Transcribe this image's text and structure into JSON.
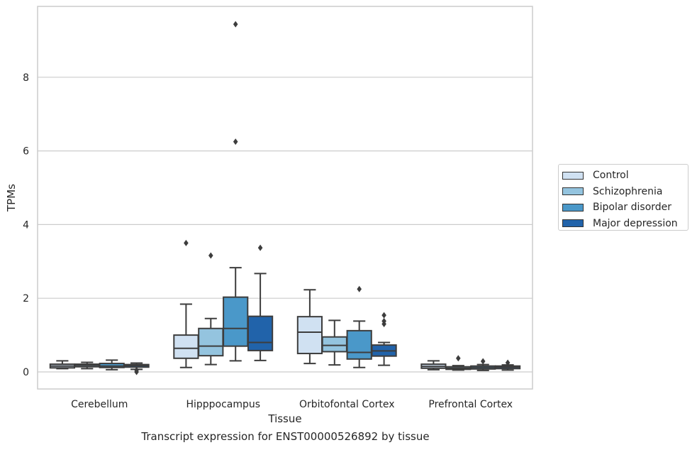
{
  "chart_data": {
    "type": "box",
    "caption": "Transcript expression for ENST00000526892 by tissue",
    "xlabel": "Tissue",
    "ylabel": "TPMs",
    "ylim": [
      -0.45,
      9.95
    ],
    "yticks": [
      0,
      2,
      4,
      6,
      8
    ],
    "grid": true,
    "legend_position": "right",
    "categories": [
      "Cerebellum",
      "Hipppocampus",
      "Orbitofontal Cortex",
      "Prefrontal Cortex"
    ],
    "series": [
      {
        "name": "Control",
        "color": "#d0e1f2",
        "boxes": [
          {
            "min": 0.09,
            "q1": 0.11,
            "median": 0.16,
            "q3": 0.21,
            "max": 0.3,
            "outliers": []
          },
          {
            "min": 0.12,
            "q1": 0.37,
            "median": 0.64,
            "q3": 1.0,
            "max": 1.84,
            "outliers": [
              3.5
            ]
          },
          {
            "min": 0.23,
            "q1": 0.5,
            "median": 1.08,
            "q3": 1.5,
            "max": 2.23,
            "outliers": []
          },
          {
            "min": 0.06,
            "q1": 0.1,
            "median": 0.15,
            "q3": 0.21,
            "max": 0.3,
            "outliers": []
          }
        ]
      },
      {
        "name": "Schizophrenia",
        "color": "#94c4df",
        "boxes": [
          {
            "min": 0.09,
            "q1": 0.14,
            "median": 0.18,
            "q3": 0.21,
            "max": 0.26,
            "outliers": []
          },
          {
            "min": 0.2,
            "q1": 0.44,
            "median": 0.7,
            "q3": 1.18,
            "max": 1.45,
            "outliers": [
              3.16
            ]
          },
          {
            "min": 0.19,
            "q1": 0.55,
            "median": 0.72,
            "q3": 0.95,
            "max": 1.4,
            "outliers": []
          },
          {
            "min": 0.05,
            "q1": 0.07,
            "median": 0.1,
            "q3": 0.14,
            "max": 0.17,
            "outliers": [
              0.37
            ]
          }
        ]
      },
      {
        "name": "Bipolar disorder",
        "color": "#4a98c9",
        "boxes": [
          {
            "min": 0.06,
            "q1": 0.12,
            "median": 0.16,
            "q3": 0.23,
            "max": 0.32,
            "outliers": []
          },
          {
            "min": 0.3,
            "q1": 0.7,
            "median": 1.18,
            "q3": 2.03,
            "max": 2.83,
            "outliers": [
              6.25,
              9.44
            ]
          },
          {
            "min": 0.12,
            "q1": 0.35,
            "median": 0.53,
            "q3": 1.12,
            "max": 1.38,
            "outliers": [
              2.25
            ]
          },
          {
            "min": 0.04,
            "q1": 0.08,
            "median": 0.12,
            "q3": 0.16,
            "max": 0.2,
            "outliers": [
              0.29
            ]
          }
        ]
      },
      {
        "name": "Major depression",
        "color": "#2163aa",
        "boxes": [
          {
            "min": 0.07,
            "q1": 0.13,
            "median": 0.17,
            "q3": 0.2,
            "max": 0.24,
            "outliers": [
              0.0,
              0.05
            ]
          },
          {
            "min": 0.31,
            "q1": 0.58,
            "median": 0.8,
            "q3": 1.51,
            "max": 2.67,
            "outliers": [
              3.37
            ]
          },
          {
            "min": 0.18,
            "q1": 0.43,
            "median": 0.57,
            "q3": 0.73,
            "max": 0.8,
            "outliers": [
              1.3,
              1.38,
              1.54
            ]
          },
          {
            "min": 0.05,
            "q1": 0.09,
            "median": 0.13,
            "q3": 0.16,
            "max": 0.19,
            "outliers": [
              0.25
            ]
          }
        ]
      }
    ]
  }
}
